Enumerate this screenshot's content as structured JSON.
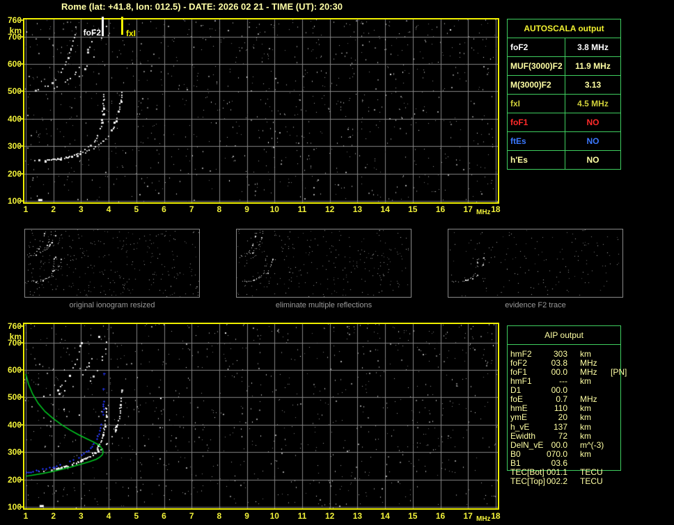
{
  "title": "Rome (lat: +41.8, lon: 012.5) - DATE: 2026 02 21 - TIME (UT): 20:30",
  "axes": {
    "x_ticks": [
      "1",
      "2",
      "3",
      "4",
      "5",
      "6",
      "7",
      "8",
      "9",
      "10",
      "11",
      "12",
      "13",
      "14",
      "15",
      "16",
      "17",
      "18"
    ],
    "x_unit": "MHz",
    "y_ticks": [
      "760",
      "700",
      "600",
      "500",
      "400",
      "300",
      "200",
      "100"
    ],
    "y_unit": "km"
  },
  "top_plot": {
    "markers": [
      {
        "label": "foF2",
        "f": 3.8,
        "color": "#ffffff"
      },
      {
        "label": "fxI",
        "f": 4.5,
        "color": "#f2f200"
      }
    ]
  },
  "autoscala": {
    "header": "AUTOSCALA output",
    "rows": [
      {
        "label": "foF2",
        "value": "3.8 MHz",
        "color": "#ffffff"
      },
      {
        "label": "MUF(3000)F2",
        "value": "11.9 MHz",
        "color": "#ffffa4"
      },
      {
        "label": "M(3000)F2",
        "value": "3.13",
        "color": "#ffffa4"
      },
      {
        "label": "fxI",
        "value": "4.5 MHz",
        "color": "#cfcf3a"
      },
      {
        "label": "foF1",
        "value": "NO",
        "color": "#ff2a2a"
      },
      {
        "label": "ftEs",
        "value": "NO",
        "color": "#3b78ff"
      },
      {
        "label": "h'Es",
        "value": "NO",
        "color": "#ffffa4"
      }
    ]
  },
  "aip": {
    "header": "AIP output",
    "rows": [
      {
        "label": "hmF2",
        "value": "303",
        "unit": "km",
        "note": ""
      },
      {
        "label": "foF2",
        "value": "03.8",
        "unit": "MHz",
        "note": ""
      },
      {
        "label": "foF1",
        "value": "00.0",
        "unit": "MHz",
        "note": "[PN]"
      },
      {
        "label": "hmF1",
        "value": "---",
        "unit": "km",
        "note": ""
      },
      {
        "label": "D1",
        "value": "00.0",
        "unit": "",
        "note": ""
      },
      {
        "label": "foE",
        "value": "0.7",
        "unit": "MHz",
        "note": ""
      },
      {
        "label": "hmE",
        "value": "110",
        "unit": "km",
        "note": ""
      },
      {
        "label": "ymE",
        "value": "20",
        "unit": "km",
        "note": ""
      },
      {
        "label": "h_vE",
        "value": "137",
        "unit": "km",
        "note": ""
      },
      {
        "label": "Ewidth",
        "value": "72",
        "unit": "km",
        "note": ""
      },
      {
        "label": "DelN_vE",
        "value": "00.0",
        "unit": "m^(-3)",
        "note": ""
      },
      {
        "label": "B0",
        "value": "070.0",
        "unit": "km",
        "note": ""
      },
      {
        "label": "B1",
        "value": "03.6",
        "unit": "",
        "note": ""
      },
      {
        "label": "TEC[Bot]",
        "value": "001.1",
        "unit": "TECU",
        "note": ""
      },
      {
        "label": "TEC[Top]",
        "value": "002.2",
        "unit": "TECU",
        "note": ""
      }
    ]
  },
  "thumbnails": [
    {
      "caption": "original ionogram resized"
    },
    {
      "caption": "eliminate multiple reflections"
    },
    {
      "caption": "evidence F2 trace"
    }
  ],
  "colors": {
    "axis_yellow": "#f2f23a",
    "frame_yellow": "#f0f000",
    "title_yellow": "#ffffa6",
    "grid_gray": "#858585",
    "table_green": "#3fcf5f",
    "aip_text": "#ffffa4",
    "caption_gray": "#9a9a9a",
    "trace_white": "#ffffff",
    "profile_green": "#00cc22",
    "restored_blue": "#2233ee"
  },
  "chart_data": {
    "type": "scatter",
    "x_unit": "MHz",
    "y_unit": "km",
    "x_range": [
      1,
      18
    ],
    "y_range": [
      100,
      760
    ],
    "top_ionogram": {
      "foF2_MHz": 3.8,
      "fxI_MHz": 4.5,
      "f2_o_trace": [
        [
          1.3,
          250
        ],
        [
          1.6,
          251
        ],
        [
          1.9,
          253
        ],
        [
          2.2,
          257
        ],
        [
          2.5,
          263
        ],
        [
          2.8,
          272
        ],
        [
          3.05,
          284
        ],
        [
          3.25,
          298
        ],
        [
          3.45,
          317
        ],
        [
          3.58,
          340
        ],
        [
          3.68,
          368
        ],
        [
          3.74,
          400
        ],
        [
          3.78,
          438
        ],
        [
          3.8,
          475
        ],
        [
          3.81,
          495
        ]
      ],
      "f2_x_trace": [
        [
          1.7,
          248
        ],
        [
          2.0,
          252
        ],
        [
          2.3,
          257
        ],
        [
          2.6,
          263
        ],
        [
          2.9,
          272
        ],
        [
          3.2,
          284
        ],
        [
          3.5,
          300
        ],
        [
          3.75,
          318
        ],
        [
          3.95,
          340
        ],
        [
          4.12,
          368
        ],
        [
          4.25,
          400
        ],
        [
          4.35,
          435
        ],
        [
          4.42,
          472
        ],
        [
          4.46,
          505
        ]
      ],
      "second_hop_a": [
        [
          1.35,
          505
        ],
        [
          1.6,
          514
        ],
        [
          1.85,
          528
        ],
        [
          2.05,
          546
        ],
        [
          2.2,
          566
        ],
        [
          2.35,
          592
        ],
        [
          2.5,
          625
        ],
        [
          2.62,
          660
        ],
        [
          2.72,
          700
        ],
        [
          2.8,
          740
        ]
      ],
      "second_hop_b": [
        [
          1.9,
          512
        ],
        [
          2.2,
          524
        ],
        [
          2.5,
          542
        ],
        [
          2.75,
          565
        ],
        [
          2.95,
          595
        ],
        [
          3.12,
          628
        ],
        [
          3.28,
          665
        ],
        [
          3.4,
          705
        ],
        [
          3.5,
          745
        ]
      ],
      "second_hop_c": [
        [
          2.9,
          560
        ],
        [
          3.2,
          592
        ],
        [
          3.45,
          630
        ],
        [
          3.65,
          672
        ],
        [
          3.8,
          718
        ],
        [
          3.9,
          752
        ]
      ],
      "e_blob": [
        1.45,
        107
      ]
    },
    "bottom_ionogram": {
      "echo_o_trace": [
        [
          1.45,
          232
        ],
        [
          1.8,
          236
        ],
        [
          2.15,
          242
        ],
        [
          2.5,
          251
        ],
        [
          2.8,
          262
        ],
        [
          3.1,
          276
        ],
        [
          3.35,
          293
        ],
        [
          3.55,
          313
        ],
        [
          3.68,
          338
        ],
        [
          3.78,
          368
        ],
        [
          3.84,
          402
        ],
        [
          3.88,
          438
        ],
        [
          3.9,
          465
        ]
      ],
      "echo_x_trace": [
        [
          1.9,
          238
        ],
        [
          2.2,
          244
        ],
        [
          2.5,
          252
        ],
        [
          2.8,
          262
        ],
        [
          3.1,
          275
        ],
        [
          3.4,
          291
        ],
        [
          3.7,
          311
        ],
        [
          3.95,
          335
        ],
        [
          4.15,
          363
        ],
        [
          4.28,
          395
        ],
        [
          4.36,
          430
        ],
        [
          4.41,
          468
        ],
        [
          4.44,
          505
        ],
        [
          4.45,
          535
        ]
      ],
      "second_hop_a": [
        [
          1.55,
          500
        ],
        [
          1.85,
          512
        ],
        [
          2.1,
          528
        ],
        [
          2.3,
          548
        ],
        [
          2.5,
          572
        ],
        [
          2.65,
          600
        ],
        [
          2.8,
          632
        ],
        [
          2.92,
          668
        ],
        [
          3.0,
          700
        ]
      ],
      "second_hop_b": [
        [
          2.2,
          515
        ],
        [
          2.5,
          532
        ],
        [
          2.8,
          556
        ],
        [
          3.05,
          585
        ],
        [
          3.25,
          618
        ],
        [
          3.42,
          655
        ],
        [
          3.55,
          695
        ],
        [
          3.65,
          735
        ]
      ],
      "second_hop_c": [
        [
          3.3,
          560
        ],
        [
          3.5,
          590
        ],
        [
          3.7,
          628
        ],
        [
          3.85,
          670
        ],
        [
          3.95,
          715
        ],
        [
          4.02,
          750
        ]
      ],
      "restored_trace_blue": [
        [
          1.0,
          227
        ],
        [
          1.35,
          232
        ],
        [
          1.7,
          239
        ],
        [
          2.05,
          248
        ],
        [
          2.4,
          259
        ],
        [
          2.7,
          272
        ],
        [
          3.0,
          288
        ],
        [
          3.25,
          307
        ],
        [
          3.45,
          330
        ],
        [
          3.6,
          357
        ],
        [
          3.7,
          390
        ],
        [
          3.76,
          425
        ],
        [
          3.79,
          458
        ],
        [
          3.8,
          487
        ]
      ],
      "restored_blue_sparse": [
        [
          3.8,
          532
        ],
        [
          3.81,
          588
        ]
      ],
      "density_profile_green": [
        [
          1.0,
          585
        ],
        [
          1.1,
          548
        ],
        [
          1.25,
          512
        ],
        [
          1.45,
          478
        ],
        [
          1.7,
          448
        ],
        [
          2.0,
          422
        ],
        [
          2.3,
          400
        ],
        [
          2.6,
          381
        ],
        [
          2.9,
          364
        ],
        [
          3.18,
          350
        ],
        [
          3.45,
          337
        ],
        [
          3.65,
          326
        ],
        [
          3.72,
          318
        ],
        [
          3.78,
          308
        ],
        [
          3.8,
          300
        ],
        [
          3.77,
          290
        ],
        [
          3.68,
          282
        ],
        [
          3.55,
          274
        ],
        [
          3.3,
          265
        ],
        [
          3.0,
          256
        ],
        [
          2.65,
          246
        ],
        [
          2.3,
          237
        ],
        [
          1.95,
          229
        ],
        [
          1.6,
          222
        ],
        [
          1.3,
          217
        ],
        [
          1.0,
          212
        ]
      ],
      "e_blob": [
        1.5,
        107
      ]
    }
  }
}
